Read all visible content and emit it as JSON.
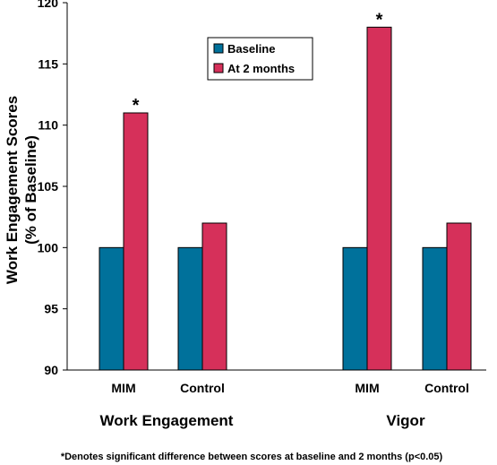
{
  "chart_data": {
    "type": "bar",
    "ylabel_lines": [
      "Work Engagement Scores",
      "(% of Baseline)"
    ],
    "ylim": [
      90,
      120
    ],
    "yticks": [
      90,
      95,
      100,
      105,
      110,
      115,
      120
    ],
    "groups": [
      {
        "label": "Work Engagement",
        "categories": [
          {
            "label": "MIM",
            "baseline": 100,
            "at_2_months": 111,
            "significant": true
          },
          {
            "label": "Control",
            "baseline": 100,
            "at_2_months": 102,
            "significant": false
          }
        ]
      },
      {
        "label": "Vigor",
        "categories": [
          {
            "label": "MIM",
            "baseline": 100,
            "at_2_months": 118,
            "significant": true
          },
          {
            "label": "Control",
            "baseline": 100,
            "at_2_months": 102,
            "significant": false
          }
        ]
      }
    ],
    "series": [
      {
        "name": "Baseline",
        "key": "baseline",
        "color": "#00719b"
      },
      {
        "name": "At 2 months",
        "key": "at_2_months",
        "color": "#d6305a"
      }
    ],
    "significance_marker": "*",
    "footnote": "*Denotes significant difference between scores at baseline and 2 months (p<0.05)",
    "legend_position": "top-center",
    "grid": false
  }
}
